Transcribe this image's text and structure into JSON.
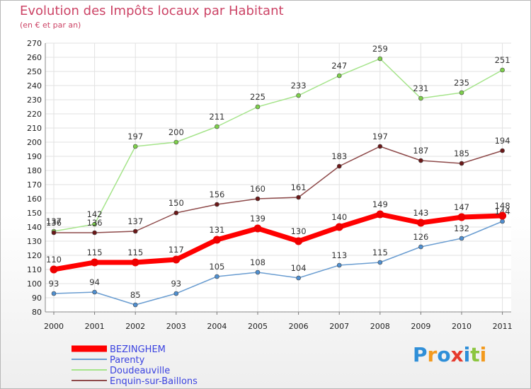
{
  "chart_data": {
    "type": "line",
    "title": "Evolution des Impôts locaux par Habitant",
    "subtitle": "(en € et par an)",
    "categories": [
      "2000",
      "2001",
      "2002",
      "2003",
      "2004",
      "2005",
      "2006",
      "2007",
      "2008",
      "2009",
      "2010",
      "2011"
    ],
    "ylim": [
      80,
      270
    ],
    "yticks": [
      80,
      90,
      100,
      110,
      120,
      130,
      140,
      150,
      160,
      170,
      180,
      190,
      200,
      210,
      220,
      230,
      240,
      250,
      260,
      270
    ],
    "grid": true,
    "legend_position": "bottom-left",
    "series": [
      {
        "name": "BEZINGHEM",
        "color": "#ff0000",
        "marker": "#ee0000",
        "emphasis": true,
        "values": [
          110,
          115,
          115,
          117,
          131,
          139,
          130,
          140,
          149,
          143,
          147,
          148
        ]
      },
      {
        "name": "Parenty",
        "color": "#6a9dd1",
        "marker": "#4f8fd0",
        "emphasis": false,
        "values": [
          93,
          94,
          85,
          93,
          105,
          108,
          104,
          113,
          115,
          126,
          132,
          144
        ]
      },
      {
        "name": "Doudeauville",
        "color": "#a5e48a",
        "marker": "#7ed04b",
        "emphasis": false,
        "values": [
          137,
          142,
          197,
          200,
          211,
          225,
          233,
          247,
          259,
          231,
          235,
          251
        ]
      },
      {
        "name": "Enquin-sur-Baillons",
        "color": "#8e4a4a",
        "marker": "#6b1818",
        "emphasis": false,
        "values": [
          136,
          136,
          137,
          150,
          156,
          160,
          161,
          183,
          197,
          187,
          185,
          194
        ]
      }
    ]
  },
  "brand": {
    "letters": [
      {
        "char": "P",
        "color": "#2f8fd8"
      },
      {
        "char": "r",
        "color": "#f39a1e"
      },
      {
        "char": "o",
        "color": "#2f8fd8"
      },
      {
        "char": "x",
        "color": "#e63b2e"
      },
      {
        "char": "i",
        "color": "#2f8fd8"
      },
      {
        "char": "t",
        "color": "#8cc63f"
      },
      {
        "char": "i",
        "color": "#f39a1e"
      }
    ]
  }
}
